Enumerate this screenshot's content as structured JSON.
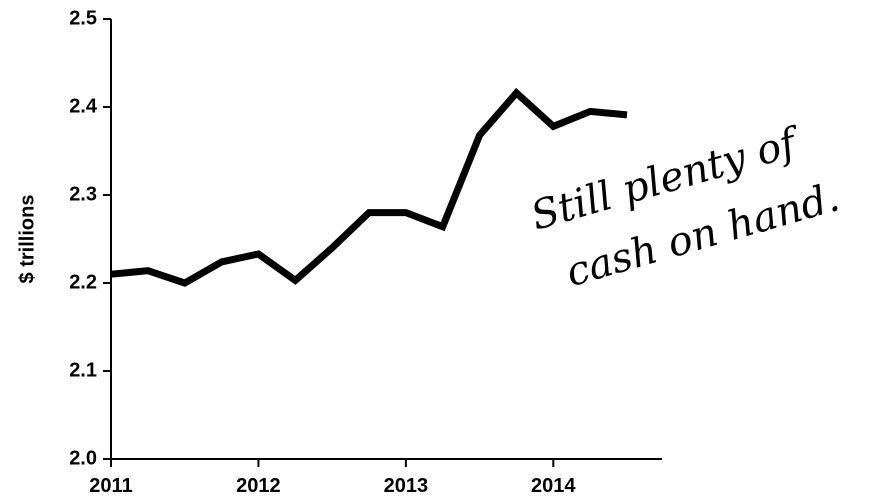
{
  "chart_data": {
    "type": "line",
    "title": "",
    "xlabel": "",
    "ylabel": "$ trillions",
    "ylim": [
      2.0,
      2.5
    ],
    "xlim": [
      2011,
      2014.75
    ],
    "y_ticks": [
      "2.0",
      "2.1",
      "2.2",
      "2.3",
      "2.4",
      "2.5"
    ],
    "x_ticks": [
      "2011",
      "2012",
      "2013",
      "2014"
    ],
    "grid": false,
    "series": [
      {
        "x": [
          2011.0,
          2011.25,
          2011.5,
          2011.75,
          2012.0,
          2012.25,
          2012.5,
          2012.75,
          2013.0,
          2013.25,
          2013.5,
          2013.75,
          2014.0,
          2014.25,
          2014.5
        ],
        "values": [
          2.21,
          2.214,
          2.2,
          2.224,
          2.233,
          2.203,
          2.24,
          2.28,
          2.28,
          2.264,
          2.368,
          2.416,
          2.378,
          2.395,
          2.391
        ]
      }
    ],
    "annotations": [
      "Still plenty of",
      "cash on hand."
    ]
  }
}
